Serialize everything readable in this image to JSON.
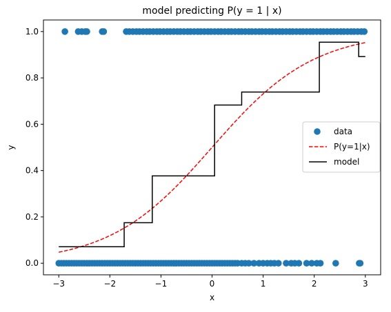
{
  "chart_data": {
    "type": "scatter",
    "title": "model predicting P(y = 1 | x)",
    "xlabel": "x",
    "ylabel": "y",
    "xlim": [
      -3.3,
      3.3
    ],
    "ylim": [
      -0.05,
      1.05
    ],
    "xticks": [
      -3,
      -2,
      -1,
      0,
      1,
      2,
      3
    ],
    "xtick_labels": [
      "−3",
      "−2",
      "−1",
      "0",
      "1",
      "2",
      "3"
    ],
    "yticks": [
      0.0,
      0.2,
      0.4,
      0.6,
      0.8,
      1.0
    ],
    "ytick_labels": [
      "0.0",
      "0.2",
      "0.4",
      "0.6",
      "0.8",
      "1.0"
    ],
    "grid": false,
    "legend": {
      "placement": "center-right",
      "entries": [
        "data",
        "P(y=1|x)",
        "model"
      ]
    },
    "series": [
      {
        "name": "data",
        "kind": "scatter",
        "color": "#1f77b4",
        "points_y1_x": [
          -2.88,
          -2.62,
          -2.55,
          -2.48,
          -2.45,
          -2.15,
          -2.12,
          -1.68,
          -1.62,
          -1.55,
          -1.48,
          -1.42,
          -1.35,
          -1.28,
          -1.22,
          -1.15,
          -1.08,
          -1.02,
          -0.95,
          -0.88,
          -0.82,
          -0.75,
          -0.68,
          -0.62,
          -0.55,
          -0.48,
          -0.42,
          -0.35,
          -0.28,
          -0.22,
          -0.15,
          -0.08,
          -0.02,
          0.05,
          0.12,
          0.18,
          0.25,
          0.32,
          0.38,
          0.45,
          0.52,
          0.58,
          0.65,
          0.72,
          0.78,
          0.85,
          0.92,
          0.98,
          1.05,
          1.12,
          1.18,
          1.25,
          1.32,
          1.38,
          1.45,
          1.52,
          1.58,
          1.65,
          1.72,
          1.78,
          1.85,
          1.92,
          1.98,
          2.05,
          2.12,
          2.18,
          2.25,
          2.32,
          2.38,
          2.45,
          2.52,
          2.58,
          2.65,
          2.72,
          2.78,
          2.85,
          2.92,
          2.98
        ],
        "points_y0_x": [
          -3.0,
          -2.95,
          -2.9,
          -2.85,
          -2.8,
          -2.75,
          -2.7,
          -2.65,
          -2.6,
          -2.55,
          -2.5,
          -2.45,
          -2.4,
          -2.35,
          -2.3,
          -2.25,
          -2.2,
          -2.15,
          -2.1,
          -2.05,
          -2.0,
          -1.95,
          -1.9,
          -1.85,
          -1.8,
          -1.75,
          -1.7,
          -1.65,
          -1.6,
          -1.55,
          -1.5,
          -1.45,
          -1.4,
          -1.35,
          -1.3,
          -1.25,
          -1.2,
          -1.15,
          -1.1,
          -1.05,
          -1.0,
          -0.95,
          -0.9,
          -0.85,
          -0.8,
          -0.75,
          -0.7,
          -0.65,
          -0.6,
          -0.55,
          -0.5,
          -0.45,
          -0.4,
          -0.35,
          -0.3,
          -0.25,
          -0.2,
          -0.15,
          -0.1,
          -0.05,
          0.0,
          0.05,
          0.1,
          0.15,
          0.2,
          0.25,
          0.3,
          0.35,
          0.4,
          0.45,
          0.5,
          0.58,
          0.65,
          0.72,
          0.82,
          0.92,
          1.0,
          1.08,
          1.15,
          1.22,
          1.3,
          1.45,
          1.55,
          1.62,
          1.7,
          1.85,
          1.95,
          2.05,
          2.12,
          2.42,
          2.88,
          2.9
        ]
      },
      {
        "name": "P(y=1|x)",
        "kind": "line",
        "style": "dashed",
        "color": "#ff0000",
        "function": "logistic",
        "x_range": [
          -3.0,
          3.0
        ],
        "description_y": "1 / (1 + exp(-x))"
      },
      {
        "name": "model",
        "kind": "step",
        "color": "#000000",
        "x": [
          -3.0,
          -1.72,
          -1.72,
          -1.17,
          -1.17,
          0.05,
          0.05,
          0.58,
          0.58,
          2.1,
          2.1,
          2.87,
          2.87,
          3.0
        ],
        "y": [
          0.071,
          0.071,
          0.175,
          0.175,
          0.377,
          0.377,
          0.683,
          0.683,
          0.739,
          0.739,
          0.954,
          0.954,
          0.892,
          0.892
        ]
      }
    ]
  }
}
